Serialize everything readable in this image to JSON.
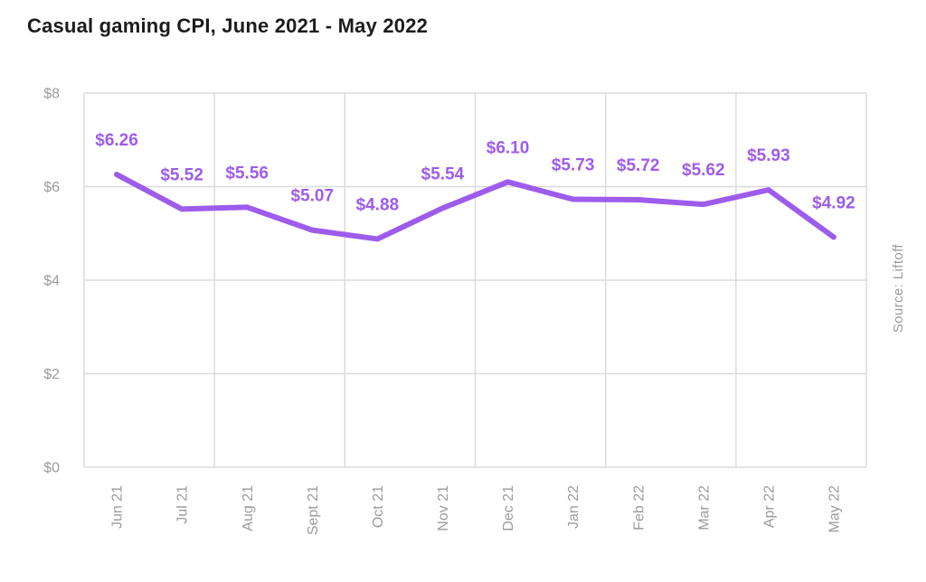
{
  "page": {
    "title": "Casual gaming CPI, June 2021 - May 2022",
    "source_note": "Source: Liftoff"
  },
  "colors": {
    "line": "#9D5CEC",
    "data_label": "#9D5CEC",
    "grid": "#DBDBDB",
    "axis_label": "#9B9B9B",
    "title": "#1C1C1C",
    "background": "#FFFFFF"
  },
  "chart_data": {
    "type": "line",
    "title": "Casual gaming CPI, June 2021 - May 2022",
    "categories": [
      "Jun 21",
      "Jul 21",
      "Aug 21",
      "Sept 21",
      "Oct 21",
      "Nov 21",
      "Dec 21",
      "Jan 22",
      "Feb 22",
      "Mar 22",
      "Apr 22",
      "May 22"
    ],
    "values": [
      6.26,
      5.52,
      5.56,
      5.07,
      4.88,
      5.54,
      6.1,
      5.73,
      5.72,
      5.62,
      5.93,
      4.92
    ],
    "data_labels": [
      "$6.26",
      "$5.52",
      "$5.56",
      "$5.07",
      "$4.88",
      "$5.54",
      "$6.10",
      "$5.73",
      "$5.72",
      "$5.62",
      "$5.93",
      "$4.92"
    ],
    "y_tick_labels": [
      "$0",
      "$2",
      "$4",
      "$6",
      "$8"
    ],
    "y_tick_values": [
      0,
      2,
      4,
      6,
      8
    ],
    "ylim": [
      0,
      8
    ],
    "grid": true,
    "vertical_gridline_every": 2,
    "legend_position": "none",
    "xlabel": "",
    "ylabel": ""
  }
}
